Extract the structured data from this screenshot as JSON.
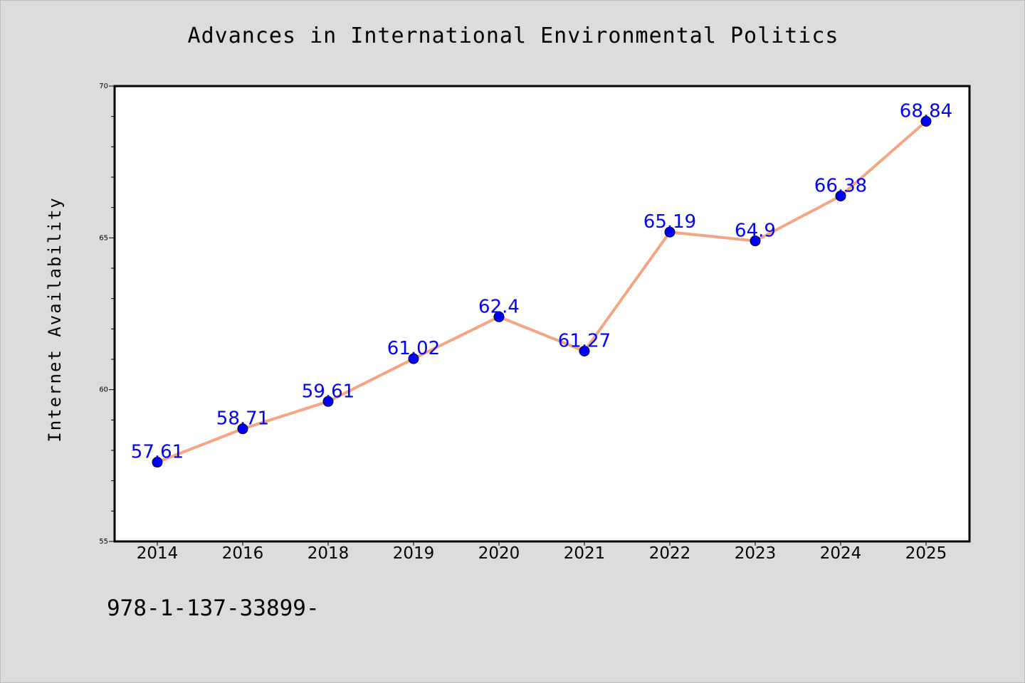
{
  "chart_data": {
    "type": "line",
    "title": "Advances in International Environmental Politics",
    "xlabel": "",
    "ylabel": "Internet Availability",
    "categories": [
      "2014",
      "2016",
      "2018",
      "2019",
      "2020",
      "2021",
      "2022",
      "2023",
      "2024",
      "2025"
    ],
    "series": [
      {
        "values": [
          57.61,
          58.71,
          59.61,
          61.02,
          62.4,
          61.27,
          65.19,
          64.9,
          66.38,
          68.84
        ],
        "labels": [
          "57.61",
          "58.71",
          "59.61",
          "61.02",
          "62.4",
          "61.27",
          "65.19",
          "64.9",
          "66.38",
          "68.84"
        ],
        "line_color": "#f4a582",
        "marker_color": "#0000ff"
      }
    ],
    "ylim": [
      55,
      70
    ],
    "y_ticks": [
      55,
      60,
      65,
      70
    ],
    "grid": false,
    "legend": "none"
  },
  "footer": {
    "isbn": "978-1-137-33899-"
  }
}
